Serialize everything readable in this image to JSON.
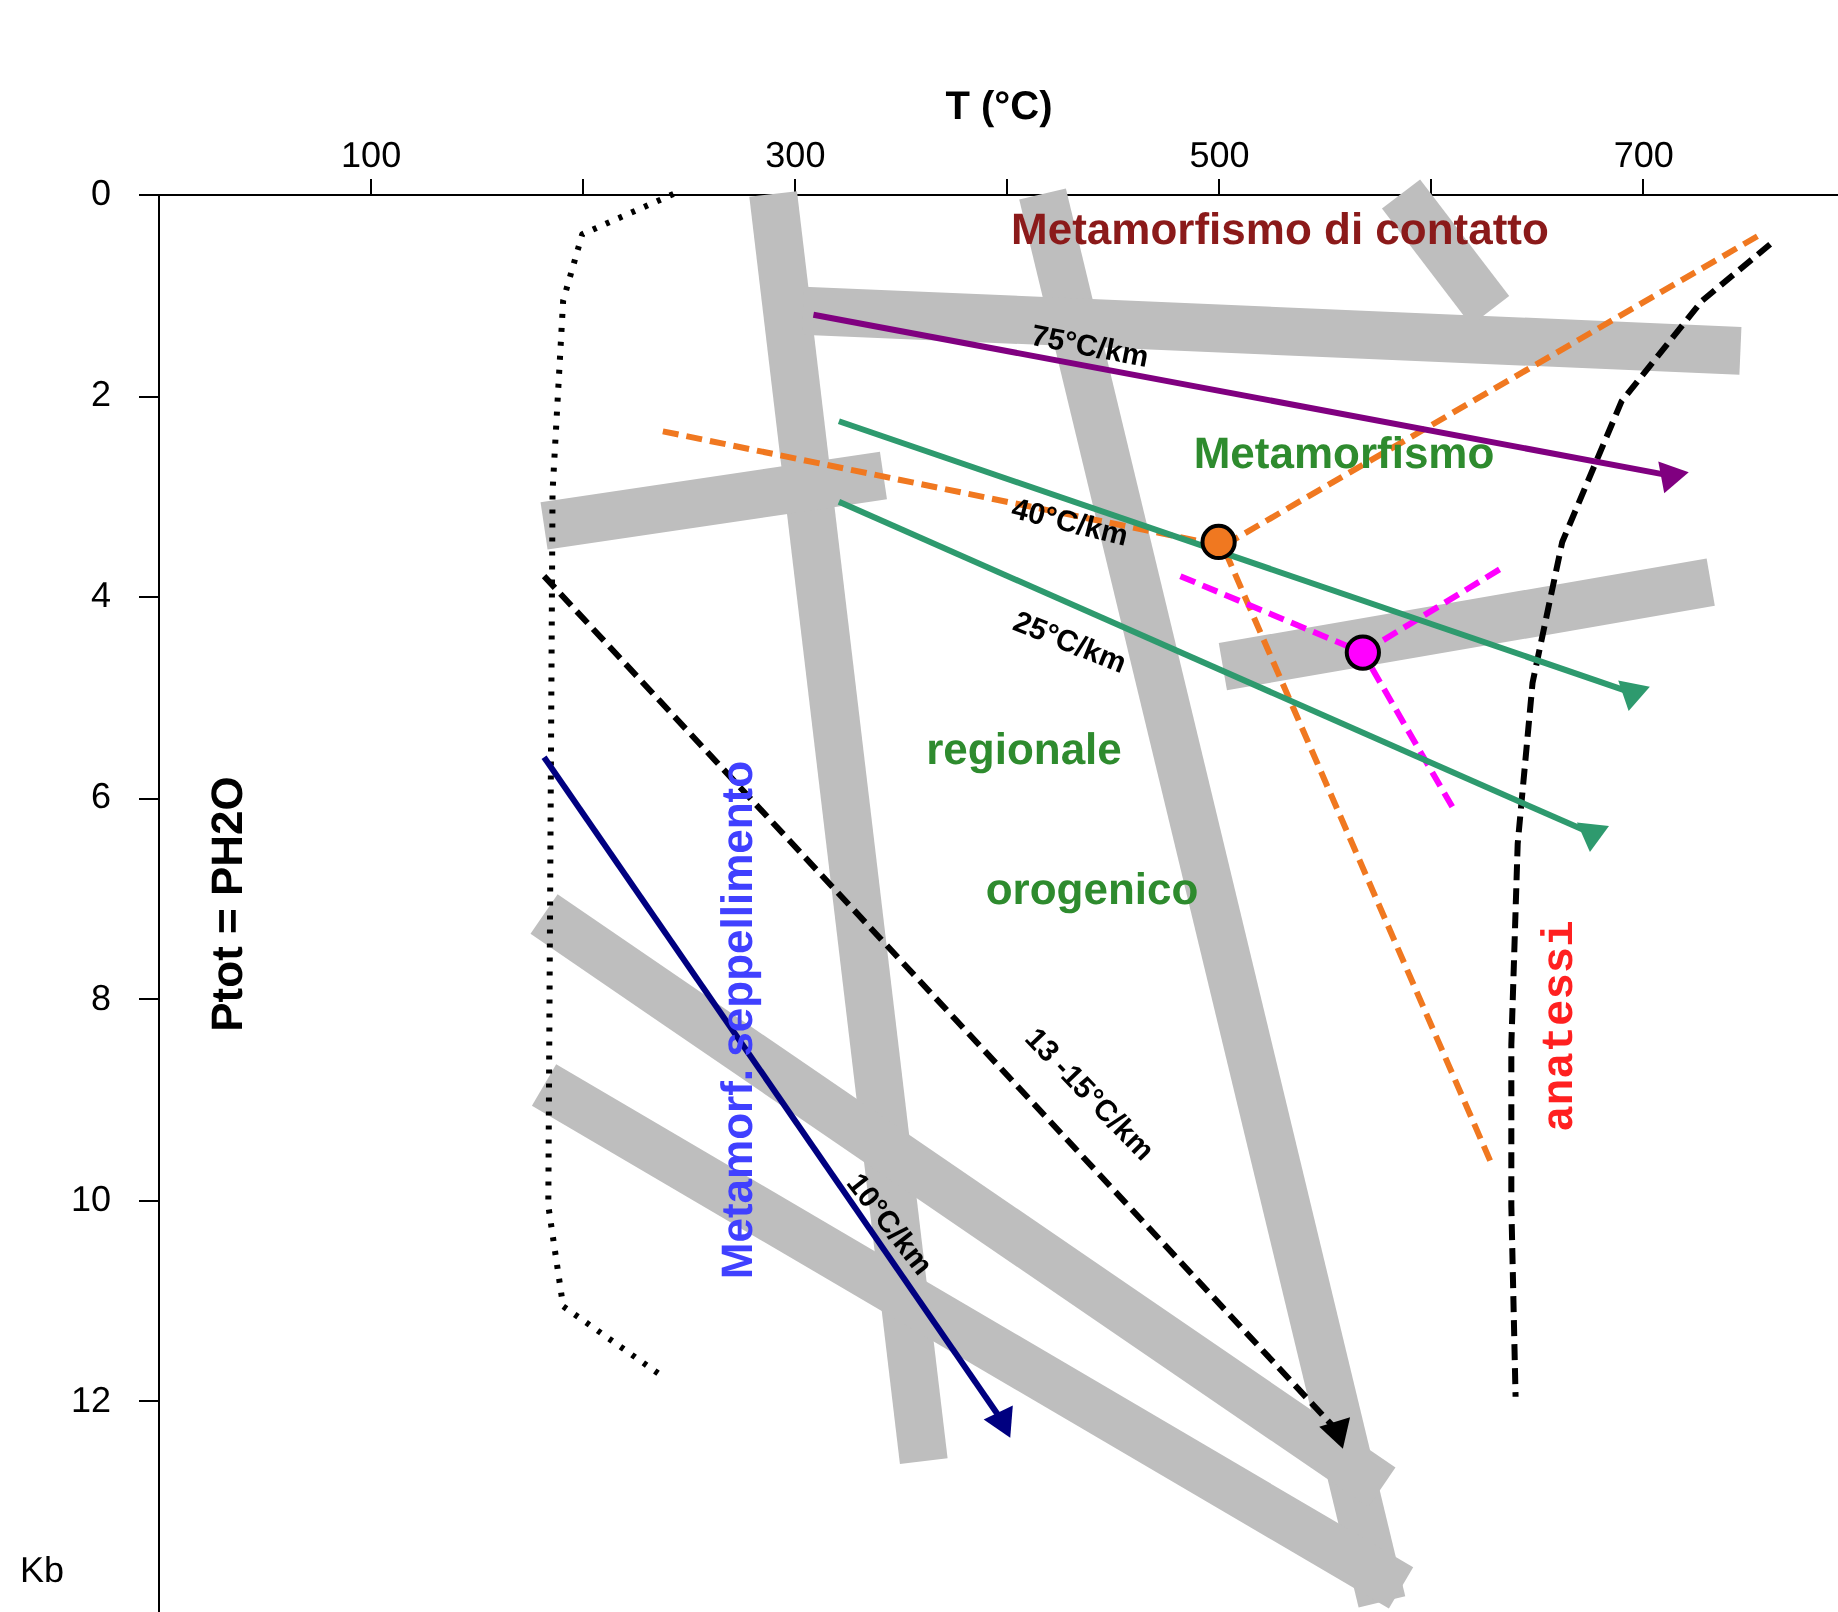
{
  "chart_data": {
    "type": "line",
    "xlabel": "T (°C)",
    "ylabel": "Ptot = PH2O",
    "xlim": [
      0,
      792
    ],
    "xticks": [
      {
        "value": 100,
        "label": "100"
      },
      {
        "value": 200,
        "label": null
      },
      {
        "value": 300,
        "label": "300"
      },
      {
        "value": 400,
        "label": null
      },
      {
        "value": 500,
        "label": "500"
      },
      {
        "value": 600,
        "label": null
      },
      {
        "value": 700,
        "label": "700"
      }
    ],
    "ylim": [
      14.1,
      0
    ],
    "yticks": [
      0,
      2,
      4,
      6,
      8,
      10,
      12
    ],
    "grid": false,
    "series": [
      {
        "color": "#bebebe",
        "x": [
          290,
          361
        ],
        "values": [
          0,
          12.6
        ]
      },
      {
        "color": "#bebebe",
        "x": [
          417,
          577
        ],
        "values": [
          0,
          14
        ]
      },
      {
        "color": "#bebebe",
        "x": [
          304,
          746
        ],
        "values": [
          1.16,
          1.56
        ]
      },
      {
        "color": "#bebebe",
        "x": [
          586,
          628
        ],
        "values": [
          0,
          1.16
        ]
      },
      {
        "color": "#bebebe",
        "x": [
          182,
          342
        ],
        "values": [
          3.3,
          2.8
        ]
      },
      {
        "color": "#bebebe",
        "x": [
          502,
          732
        ],
        "values": [
          4.7,
          3.86
        ]
      },
      {
        "color": "#bebebe",
        "x": [
          182,
          577
        ],
        "values": [
          7.16,
          12.86
        ]
      },
      {
        "color": "#bebebe",
        "x": [
          182,
          586
        ],
        "values": [
          8.86,
          13.86
        ]
      },
      {
        "color": "#000000",
        "line_style": "dotted",
        "x": [
          243,
          200,
          191,
          186,
          184,
          191,
          238
        ],
        "values": [
          0,
          0.4,
          1.06,
          2.96,
          10.06,
          11.06,
          11.76
        ]
      },
      {
        "color": "#000000",
        "line_style": "dashed",
        "x": [
          760,
          728,
          690,
          662,
          648,
          641,
          638,
          638,
          640
        ],
        "values": [
          0.5,
          1.06,
          2.06,
          3.46,
          4.86,
          6.46,
          8.46,
          10.06,
          11.96
        ]
      },
      {
        "color": "#f07820",
        "line_style": "dashed",
        "x": [
          754,
          502,
          629
        ],
        "values": [
          0.42,
          3.5,
          9.66
        ]
      },
      {
        "color": "#f07820",
        "line_style": "dashed",
        "x": [
          238,
          502
        ],
        "values": [
          2.36,
          3.5
        ]
      },
      {
        "color": "#ff00ff",
        "line_style": "dashed",
        "x": [
          482,
          568,
          612
        ],
        "values": [
          3.8,
          4.56,
          6.16
        ]
      },
      {
        "color": "#ff00ff",
        "line_style": "dashed",
        "x": [
          568,
          635
        ],
        "values": [
          4.56,
          3.7
        ]
      },
      {
        "color": "#800080",
        "line_style": "solid",
        "marker": "triangle",
        "x": [
          309,
          713
        ],
        "values": [
          1.2,
          2.8
        ]
      },
      {
        "color": "#2e9a6e",
        "line_style": "solid",
        "marker": "triangle",
        "x": [
          321,
          695
        ],
        "values": [
          2.26,
          4.96
        ]
      },
      {
        "color": "#2e9a6e",
        "line_style": "solid",
        "marker": "triangle",
        "x": [
          321,
          676
        ],
        "values": [
          3.06,
          6.36
        ]
      },
      {
        "color": "#000080",
        "line_style": "solid",
        "marker": "triangle",
        "x": [
          182,
          398
        ],
        "values": [
          5.6,
          12.2
        ]
      },
      {
        "color": "#000000",
        "line_style": "dashed",
        "marker": "triangle",
        "x": [
          182,
          556
        ],
        "values": [
          3.8,
          12.3
        ]
      },
      {
        "type": "scatter",
        "color": "#f07820",
        "marker": "circle",
        "x": [
          500
        ],
        "values": [
          3.46
        ]
      },
      {
        "type": "scatter",
        "color": "#ff00ff",
        "marker": "circle",
        "x": [
          568
        ],
        "values": [
          4.56
        ]
      }
    ],
    "annotations": [
      "Metamorfismo  di  contatto",
      "Metamorfismo",
      "regionale",
      "orogenico",
      "Metamorf. seppellimento",
      "anatessi",
      "75°C/km",
      "40°C/km",
      "25°C/km",
      "13 -15°C/km",
      "10°C/km",
      "Kb"
    ]
  }
}
